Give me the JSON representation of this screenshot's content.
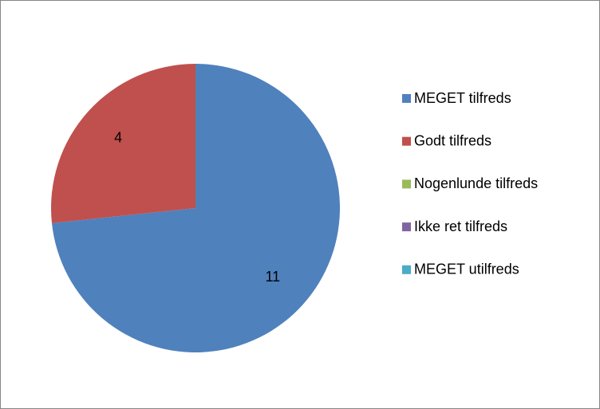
{
  "chart_data": {
    "type": "pie",
    "categories": [
      "MEGET tilfreds",
      "Godt tilfreds",
      "Nogenlunde tilfreds",
      "Ikke ret tilfreds",
      "MEGET utilfreds"
    ],
    "values": [
      11,
      4,
      0,
      0,
      0
    ],
    "colors": [
      "#4f81bd",
      "#c0504d",
      "#9bbb59",
      "#8064a2",
      "#4bacc6"
    ],
    "legend": "right"
  }
}
